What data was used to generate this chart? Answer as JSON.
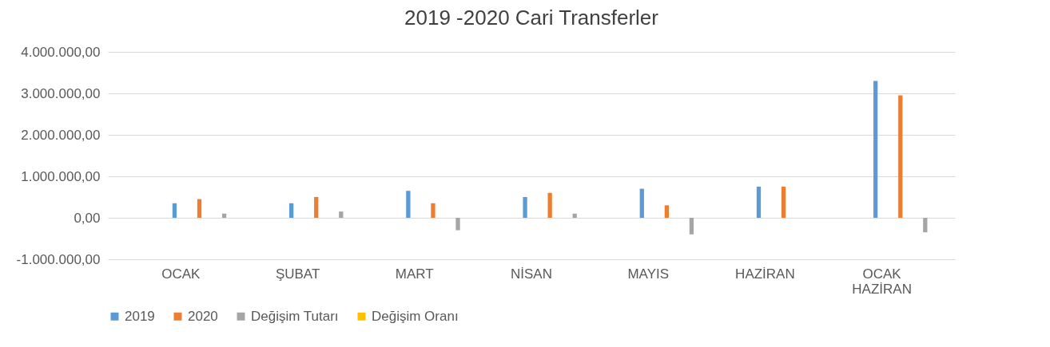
{
  "chart_data": {
    "type": "bar",
    "title": "2019 -2020 Cari Transferler",
    "categories": [
      "OCAK",
      "ŞUBAT",
      "MART",
      "NİSAN",
      "MAYIS",
      "HAZİRAN",
      "OCAK HAZİRAN"
    ],
    "series": [
      {
        "name": "2019",
        "color": "#5b9bd5",
        "values": [
          350000,
          350000,
          650000,
          500000,
          700000,
          750000,
          3300000
        ]
      },
      {
        "name": "2020",
        "color": "#ed7d31",
        "values": [
          450000,
          500000,
          350000,
          600000,
          300000,
          750000,
          2950000
        ]
      },
      {
        "name": "Değişim Tutarı",
        "color": "#a5a5a5",
        "values": [
          100000,
          150000,
          -300000,
          100000,
          -400000,
          0,
          -350000
        ]
      },
      {
        "name": "Değişim Oranı",
        "color": "#ffc000",
        "values": [
          0,
          0,
          0,
          0,
          0,
          0,
          0
        ]
      }
    ],
    "ylim": [
      -1000000,
      4000000
    ],
    "yticks": [
      {
        "value": -1000000,
        "label": "-1.000.000,00"
      },
      {
        "value": 0,
        "label": "0,00"
      },
      {
        "value": 1000000,
        "label": "1.000.000,00"
      },
      {
        "value": 2000000,
        "label": "2.000.000,00"
      },
      {
        "value": 3000000,
        "label": "3.000.000,00"
      },
      {
        "value": 4000000,
        "label": "4.000.000,00"
      }
    ],
    "grid": "y",
    "legend": "bottom"
  }
}
